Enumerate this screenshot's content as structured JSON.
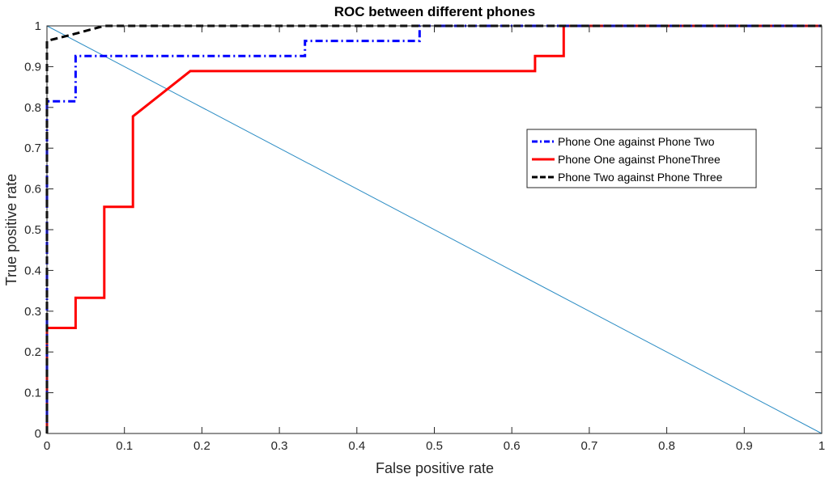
{
  "chart_data": {
    "type": "line",
    "title": "ROC between different phones",
    "xlabel": "False positive rate",
    "ylabel": "True positive rate",
    "xlim": [
      0,
      1
    ],
    "ylim": [
      0,
      1
    ],
    "xticks": [
      0,
      0.1,
      0.2,
      0.3,
      0.4,
      0.5,
      0.6,
      0.7,
      0.8,
      0.9,
      1
    ],
    "yticks": [
      0,
      0.1,
      0.2,
      0.3,
      0.4,
      0.5,
      0.6,
      0.7,
      0.8,
      0.9,
      1
    ],
    "xtick_labels": [
      "0",
      "0.1",
      "0.2",
      "0.3",
      "0.4",
      "0.5",
      "0.6",
      "0.7",
      "0.8",
      "0.9",
      "1"
    ],
    "ytick_labels": [
      "0",
      "0.1",
      "0.2",
      "0.3",
      "0.4",
      "0.5",
      "0.6",
      "0.7",
      "0.8",
      "0.9",
      "1"
    ],
    "grid": false,
    "legend_position": "center-right",
    "series": [
      {
        "name": "Phone One against Phone Two",
        "color": "#0000ff",
        "dash": "dash-dot",
        "x": [
          0,
          0,
          0.037,
          0.037,
          0.333,
          0.333,
          0.481,
          0.481,
          1
        ],
        "y": [
          0,
          0.815,
          0.815,
          0.926,
          0.926,
          0.963,
          0.963,
          1,
          1
        ]
      },
      {
        "name": "Phone One against PhoneThree",
        "color": "#ff0000",
        "dash": "solid",
        "x": [
          0,
          0,
          0.037,
          0.037,
          0.074,
          0.074,
          0.111,
          0.111,
          0.185,
          0.63,
          0.63,
          0.667,
          0.667,
          1
        ],
        "y": [
          0,
          0.259,
          0.259,
          0.333,
          0.333,
          0.556,
          0.556,
          0.778,
          0.889,
          0.889,
          0.926,
          0.926,
          1,
          1
        ]
      },
      {
        "name": "Phone Two against Phone Three",
        "color": "#000000",
        "dash": "dashed",
        "x": [
          0,
          0,
          0.037,
          0.074,
          1
        ],
        "y": [
          0,
          0.963,
          0.981,
          1,
          1
        ]
      }
    ],
    "reference_line": {
      "color": "#2b8cc4",
      "x": [
        0,
        1
      ],
      "y": [
        1,
        0
      ]
    }
  }
}
